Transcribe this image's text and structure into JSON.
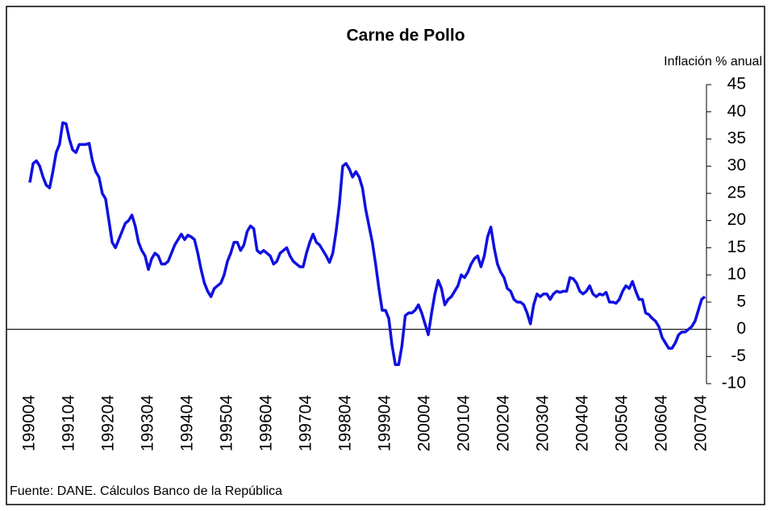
{
  "chart_data": {
    "type": "line",
    "title": "Carne de Pollo",
    "y_axis_label": "Inflación % anual",
    "source": "Fuente: DANE. Cálculos Banco de la República",
    "categories": [
      "199004",
      null,
      null,
      null,
      null,
      null,
      null,
      null,
      null,
      null,
      null,
      null,
      "199104",
      null,
      null,
      null,
      null,
      null,
      null,
      null,
      null,
      null,
      null,
      null,
      "199204",
      null,
      null,
      null,
      null,
      null,
      null,
      null,
      null,
      null,
      null,
      null,
      "199304",
      null,
      null,
      null,
      null,
      null,
      null,
      null,
      null,
      null,
      null,
      null,
      "199404",
      null,
      null,
      null,
      null,
      null,
      null,
      null,
      null,
      null,
      null,
      null,
      "199504",
      null,
      null,
      null,
      null,
      null,
      null,
      null,
      null,
      null,
      null,
      null,
      "199604",
      null,
      null,
      null,
      null,
      null,
      null,
      null,
      null,
      null,
      null,
      null,
      "199704",
      null,
      null,
      null,
      null,
      null,
      null,
      null,
      null,
      null,
      null,
      null,
      "199804",
      null,
      null,
      null,
      null,
      null,
      null,
      null,
      null,
      null,
      null,
      null,
      "199904",
      null,
      null,
      null,
      null,
      null,
      null,
      null,
      null,
      null,
      null,
      null,
      "200004",
      null,
      null,
      null,
      null,
      null,
      null,
      null,
      null,
      null,
      null,
      null,
      "200104",
      null,
      null,
      null,
      null,
      null,
      null,
      null,
      null,
      null,
      null,
      null,
      "200204",
      null,
      null,
      null,
      null,
      null,
      null,
      null,
      null,
      null,
      null,
      null,
      "200304",
      null,
      null,
      null,
      null,
      null,
      null,
      null,
      null,
      null,
      null,
      null,
      "200404",
      null,
      null,
      null,
      null,
      null,
      null,
      null,
      null,
      null,
      null,
      null,
      "200504",
      null,
      null,
      null,
      null,
      null,
      null,
      null,
      null,
      null,
      null,
      null,
      "200604",
      null,
      null,
      null,
      null,
      null,
      null,
      null,
      null,
      null,
      null,
      null,
      "200704",
      null
    ],
    "series": [
      {
        "name": "Carne de Pollo",
        "color": "#1010e0",
        "values": [
          27,
          30.5,
          31,
          30,
          28,
          26.5,
          26,
          29,
          32.5,
          34,
          38,
          37.8,
          35,
          33,
          32.5,
          34,
          34,
          34,
          34.2,
          31,
          29,
          28,
          25,
          24,
          20,
          16,
          15,
          16.5,
          18,
          19.5,
          20,
          21,
          19,
          16,
          14.5,
          13.5,
          11,
          13,
          14,
          13.5,
          12,
          12,
          12.5,
          14,
          15.5,
          16.5,
          17.5,
          16.5,
          17.3,
          17,
          16.5,
          14,
          11,
          8.5,
          7,
          6,
          7.5,
          8,
          8.5,
          10,
          12.5,
          14,
          16,
          16,
          14.5,
          15.5,
          18,
          19,
          18.5,
          14.5,
          14,
          14.5,
          14,
          13.5,
          12,
          12.5,
          14,
          14.5,
          15,
          13.5,
          12.5,
          12,
          11.5,
          11.5,
          14,
          16,
          17.5,
          16,
          15.5,
          14.5,
          13.5,
          12.3,
          14,
          18,
          23,
          30,
          30.5,
          29.5,
          28,
          29,
          28,
          26,
          22,
          19,
          16,
          12,
          7.5,
          3.5,
          3.5,
          2,
          -3,
          -6.5,
          -6.5,
          -3,
          2.5,
          3,
          3,
          3.5,
          4.5,
          3,
          1,
          -1,
          3,
          6.5,
          9,
          7.5,
          4.5,
          5.5,
          6,
          7,
          8,
          10,
          9.5,
          10.5,
          12,
          13,
          13.5,
          11.5,
          13.5,
          17,
          18.8,
          15,
          12,
          10.5,
          9.5,
          7.5,
          7,
          5.5,
          5,
          5,
          4.5,
          3,
          1,
          4.5,
          6.5,
          6,
          6.5,
          6.5,
          5.5,
          6.5,
          7,
          6.8,
          7,
          7,
          9.5,
          9.3,
          8.5,
          7,
          6.5,
          7,
          8,
          6.5,
          6,
          6.5,
          6.3,
          6.8,
          5,
          5,
          4.8,
          5.5,
          7,
          8,
          7.5,
          8.8,
          7,
          5.5,
          5.5,
          3,
          2.7,
          2,
          1.5,
          0.5,
          -1.5,
          -2.5,
          -3.5,
          -3.5,
          -2.5,
          -1,
          -0.5,
          -0.5,
          0,
          0.5,
          1.5,
          3.5,
          5.5,
          6
        ]
      }
    ],
    "ylim": [
      -10,
      45
    ],
    "yticks": [
      -10,
      -5,
      0,
      5,
      10,
      15,
      20,
      25,
      30,
      35,
      40,
      45
    ],
    "grid": false
  }
}
